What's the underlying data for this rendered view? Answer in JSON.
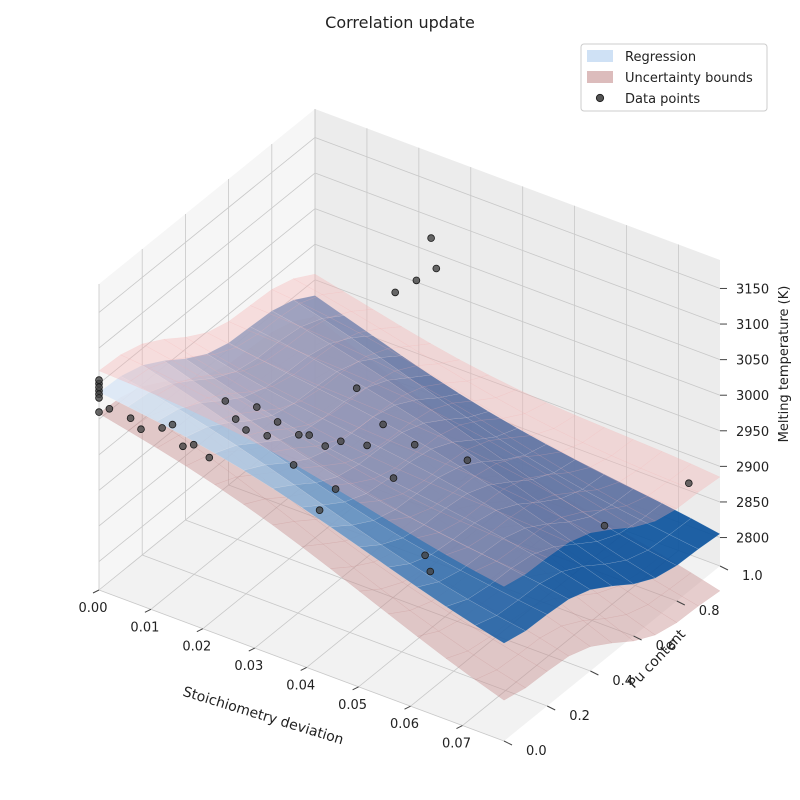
{
  "chart_data": {
    "type": "surface3d",
    "title": "Correlation update",
    "xlabel": "Stoichiometry deviation",
    "ylabel": "Pu content",
    "zlabel": "Melting temperature (K)",
    "xlim": [
      0.0,
      0.078
    ],
    "ylim": [
      0.0,
      1.0
    ],
    "zlim": [
      2760,
      3190
    ],
    "x_ticks": [
      "0.00",
      "0.01",
      "0.02",
      "0.03",
      "0.04",
      "0.05",
      "0.06",
      "0.07"
    ],
    "y_ticks": [
      "0.0",
      "0.2",
      "0.4",
      "0.6",
      "0.8",
      "1.0"
    ],
    "z_ticks": [
      "2800",
      "2850",
      "2900",
      "2950",
      "3000",
      "3050",
      "3100",
      "3150"
    ],
    "legend_position": "top-right",
    "legend": [
      {
        "label": "Regression",
        "color": "#cfe1f5"
      },
      {
        "label": "Uncertainty bounds",
        "color": "#dcbcbc"
      },
      {
        "label": "Data points",
        "color": "#555555"
      }
    ],
    "colors": {
      "regression_low": "#08519c",
      "regression_high": "#f2f8ff",
      "bound_upper": "#f5b0b0",
      "bound_lower": "#c79090",
      "points": "#444444"
    },
    "regression_model": {
      "t0": 3038,
      "slope_stoich": -1650,
      "slope_pu": -115
    },
    "uncertainty_halfwidth_K": {
      "low_x": 30,
      "high_x": 80
    },
    "points": [
      {
        "x": 0.0,
        "y": 0.0,
        "z": 3050
      },
      {
        "x": 0.0,
        "y": 0.0,
        "z": 3040
      },
      {
        "x": 0.0,
        "y": 0.0,
        "z": 3045
      },
      {
        "x": 0.0,
        "y": 0.0,
        "z": 3055
      },
      {
        "x": 0.0,
        "y": 0.0,
        "z": 3035
      },
      {
        "x": 0.0,
        "y": 0.0,
        "z": 3030
      },
      {
        "x": 0.0,
        "y": 0.0,
        "z": 3010
      },
      {
        "x": 0.002,
        "y": 0.0,
        "z": 3020
      },
      {
        "x": 0.004,
        "y": 0.05,
        "z": 3000
      },
      {
        "x": 0.006,
        "y": 0.05,
        "z": 2990
      },
      {
        "x": 0.008,
        "y": 0.1,
        "z": 2985
      },
      {
        "x": 0.01,
        "y": 0.1,
        "z": 2995
      },
      {
        "x": 0.012,
        "y": 0.1,
        "z": 2970
      },
      {
        "x": 0.012,
        "y": 0.15,
        "z": 2960
      },
      {
        "x": 0.015,
        "y": 0.15,
        "z": 2950
      },
      {
        "x": 0.016,
        "y": 0.2,
        "z": 3020
      },
      {
        "x": 0.018,
        "y": 0.2,
        "z": 3000
      },
      {
        "x": 0.02,
        "y": 0.2,
        "z": 2990
      },
      {
        "x": 0.02,
        "y": 0.25,
        "z": 3010
      },
      {
        "x": 0.022,
        "y": 0.25,
        "z": 2975
      },
      {
        "x": 0.024,
        "y": 0.25,
        "z": 3000
      },
      {
        "x": 0.025,
        "y": 0.3,
        "z": 2930
      },
      {
        "x": 0.026,
        "y": 0.3,
        "z": 2975
      },
      {
        "x": 0.028,
        "y": 0.3,
        "z": 2980
      },
      {
        "x": 0.029,
        "y": 0.35,
        "z": 2955
      },
      {
        "x": 0.03,
        "y": 0.3,
        "z": 2880
      },
      {
        "x": 0.031,
        "y": 0.35,
        "z": 2900
      },
      {
        "x": 0.032,
        "y": 0.35,
        "z": 2970
      },
      {
        "x": 0.033,
        "y": 0.4,
        "z": 3035
      },
      {
        "x": 0.035,
        "y": 0.4,
        "z": 2960
      },
      {
        "x": 0.036,
        "y": 0.45,
        "z": 2980
      },
      {
        "x": 0.038,
        "y": 0.45,
        "z": 2910
      },
      {
        "x": 0.04,
        "y": 0.5,
        "z": 2950
      },
      {
        "x": 0.042,
        "y": 0.5,
        "z": 2800
      },
      {
        "x": 0.043,
        "y": 0.5,
        "z": 2780
      },
      {
        "x": 0.046,
        "y": 0.6,
        "z": 2920
      },
      {
        "x": 0.03,
        "y": 0.65,
        "z": 3100
      },
      {
        "x": 0.032,
        "y": 0.7,
        "z": 3110
      },
      {
        "x": 0.034,
        "y": 0.72,
        "z": 3170
      },
      {
        "x": 0.035,
        "y": 0.72,
        "z": 3130
      },
      {
        "x": 0.062,
        "y": 0.85,
        "z": 2810
      },
      {
        "x": 0.072,
        "y": 1.0,
        "z": 2860
      }
    ]
  }
}
